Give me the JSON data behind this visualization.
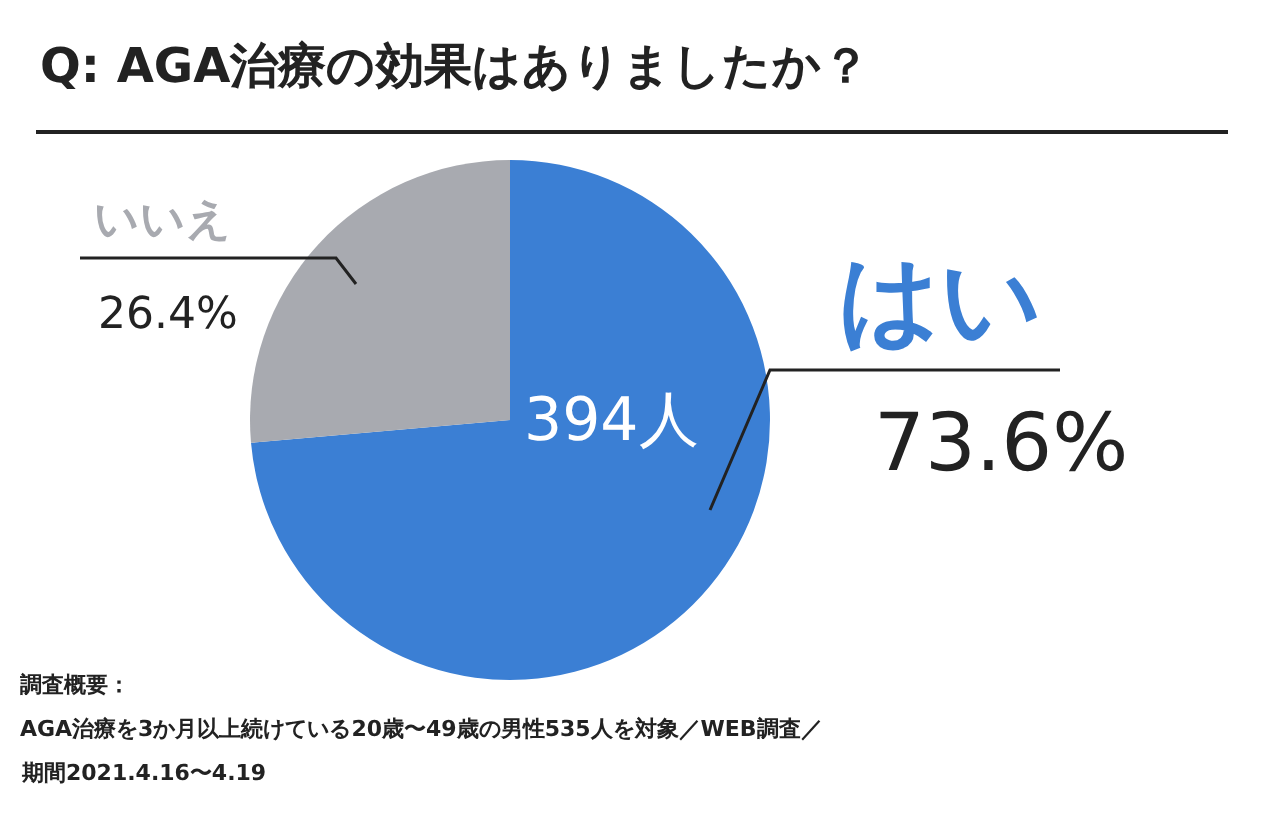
{
  "chart_data": {
    "type": "pie",
    "title": "Q: AGA治療の効果はありましたか？",
    "categories": [
      "はい",
      "いいえ"
    ],
    "values": [
      73.6,
      26.4
    ],
    "colors": [
      "#3b7fd4",
      "#a8aab0"
    ],
    "value_labels": [
      "73.6%",
      "26.4%"
    ],
    "legend": false,
    "annotations": [
      "394人",
      "調査概要：",
      "AGA治療を3か月以上続けている20歳〜49歳の男性535人を対象／WEB調査／",
      "期間2021.4.16〜4.19"
    ]
  }
}
